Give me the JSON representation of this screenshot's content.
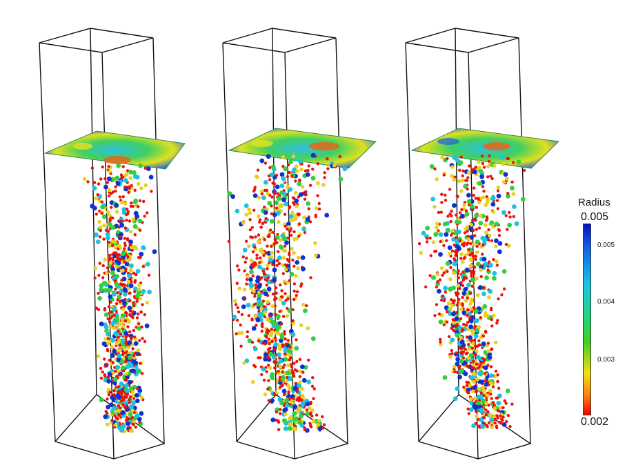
{
  "legend": {
    "title": "Radius",
    "max_label": "0.005",
    "min_label": "0.002",
    "ticks": [
      "0.005",
      "0.004",
      "0.003"
    ]
  },
  "colors": {
    "low": "#e8140a",
    "mid_low": "#e8d020",
    "mid": "#30d040",
    "mid_high": "#20c0e0",
    "high": "#1030d0"
  }
}
